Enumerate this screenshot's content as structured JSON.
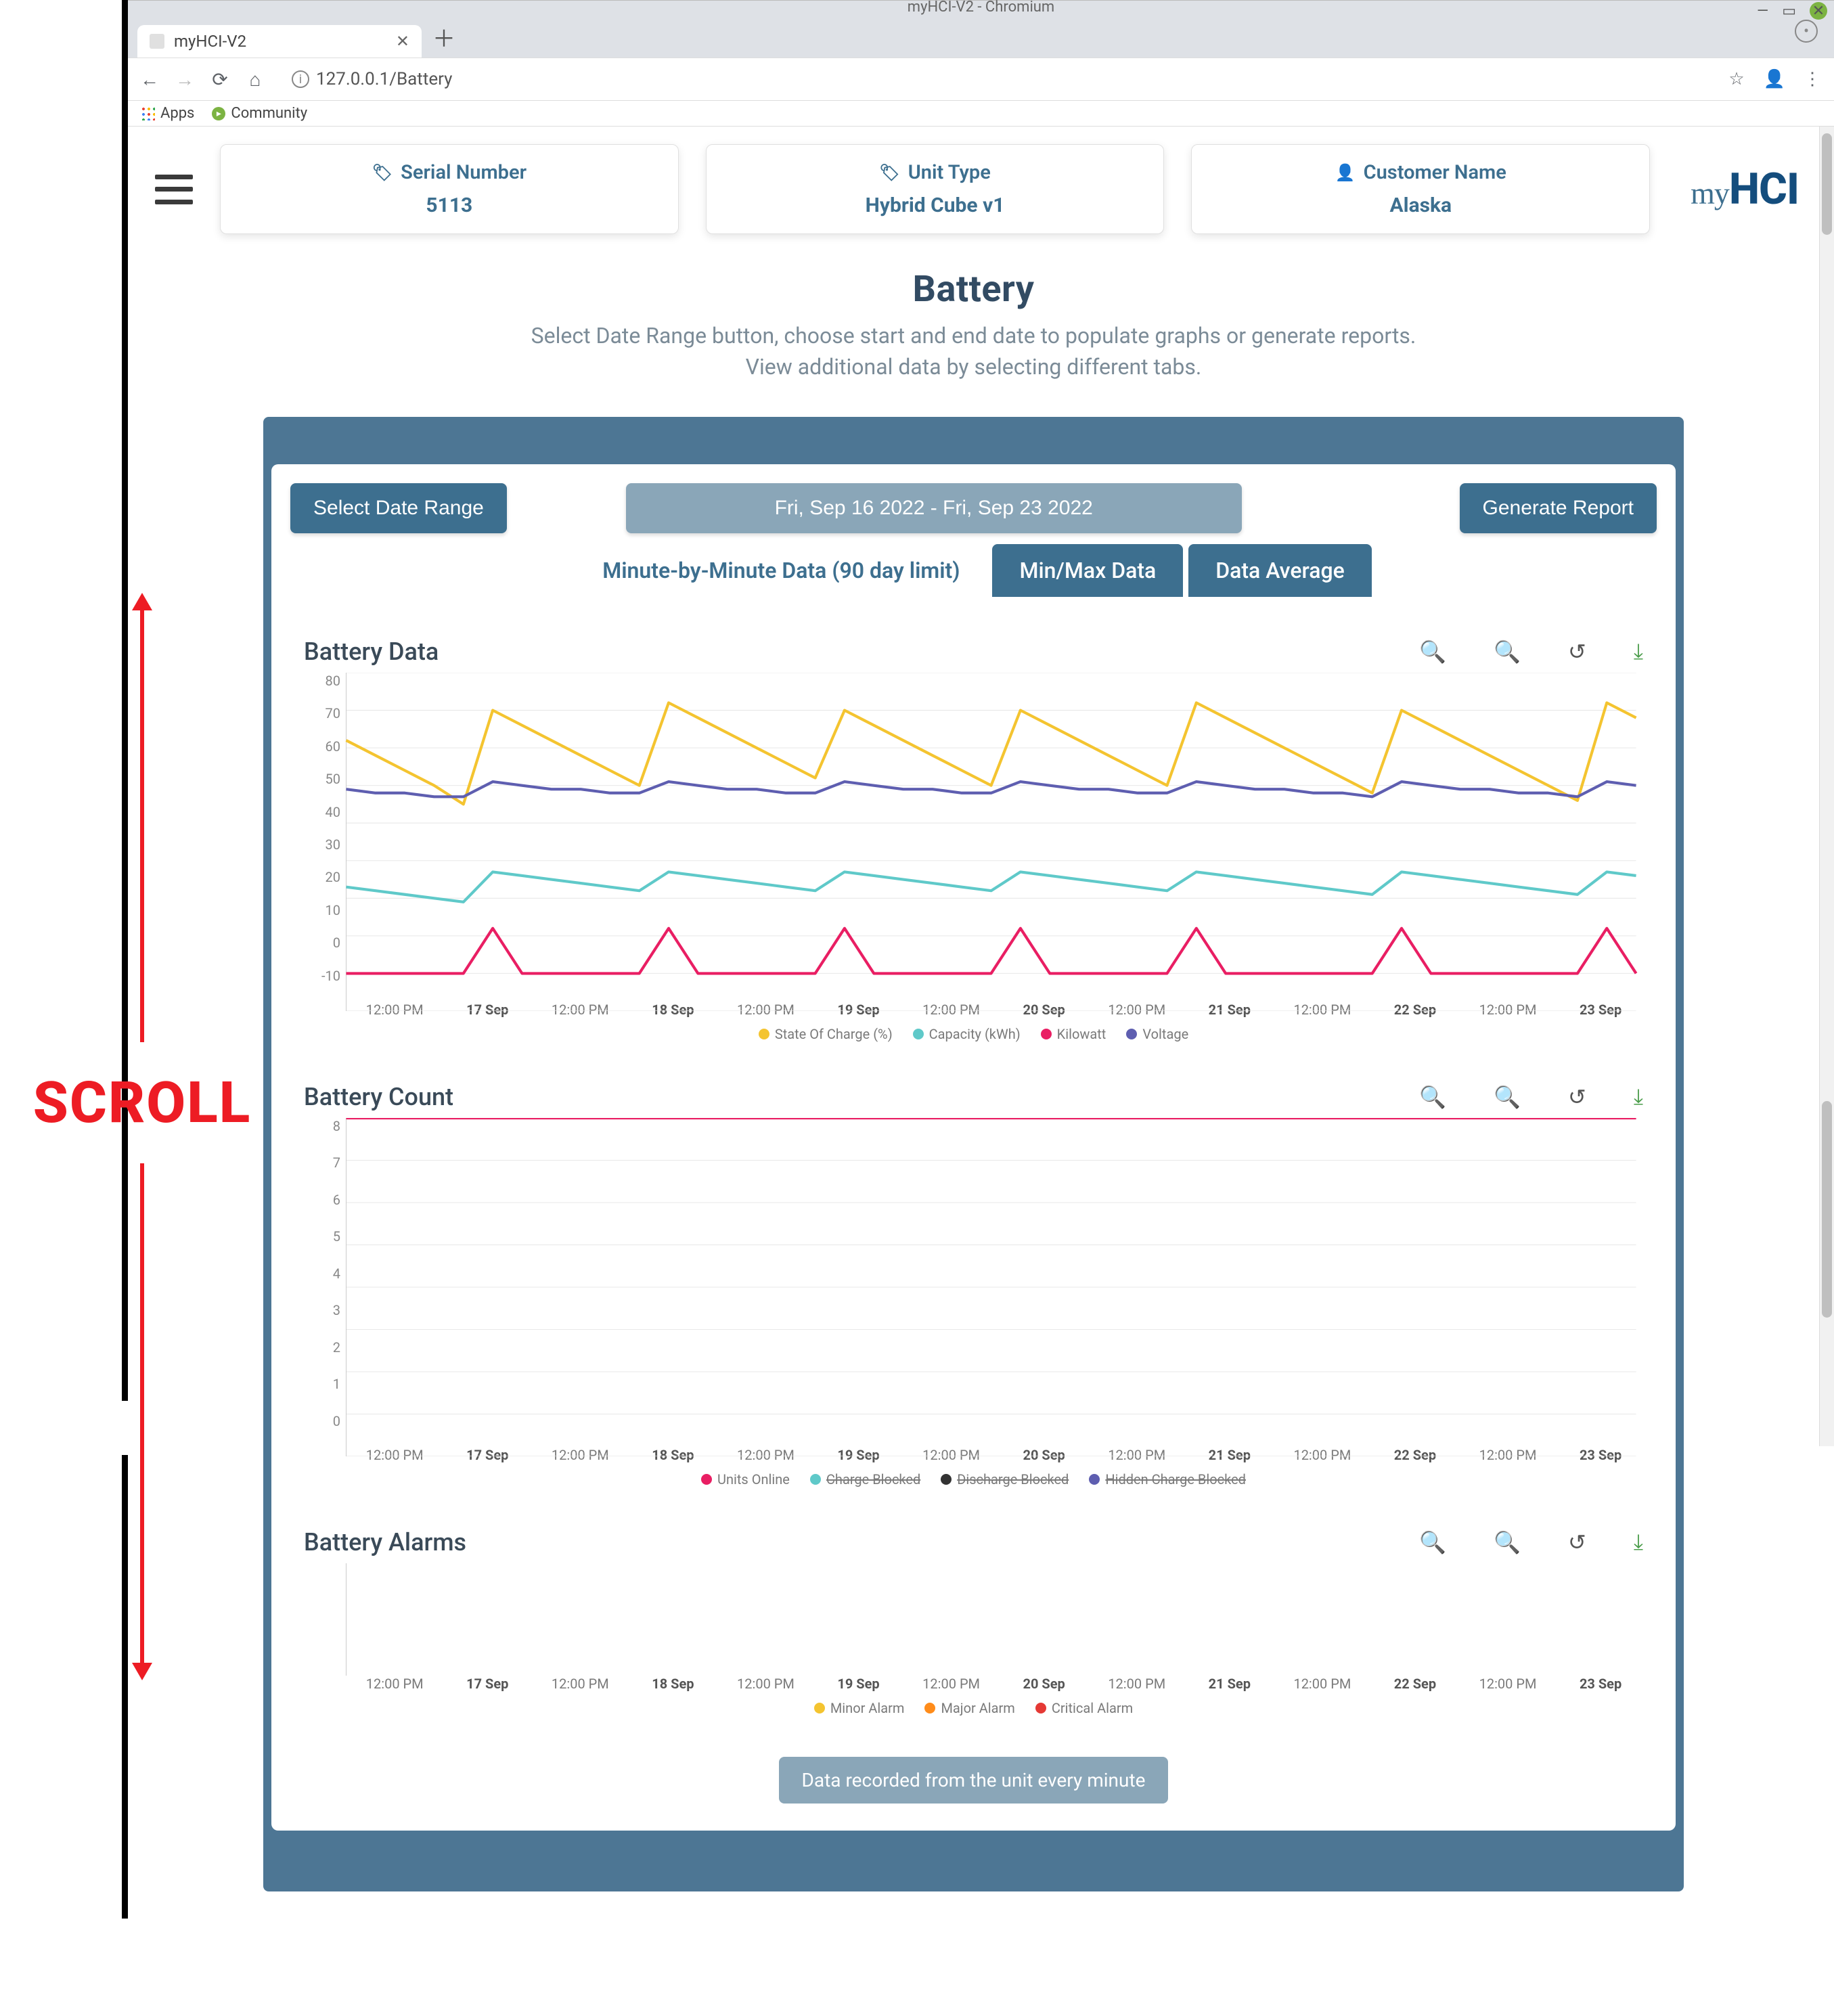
{
  "scroll_label": "SCROLL",
  "browser": {
    "window_title": "myHCI-V2 - Chromium",
    "tab_title": "myHCI-V2",
    "url": "127.0.0.1/Battery",
    "bookmarks": {
      "apps": "Apps",
      "community": "Community"
    }
  },
  "header": {
    "cards": [
      {
        "icon": "🏷",
        "label": "Serial Number",
        "value": "5113"
      },
      {
        "icon": "🏷",
        "label": "Unit Type",
        "value": "Hybrid Cube v1"
      },
      {
        "icon": "👤",
        "label": "Customer Name",
        "value": "Alaska"
      }
    ],
    "logo_my": "my",
    "logo_main": "HCI"
  },
  "title": {
    "main": "Battery",
    "sub1": "Select Date Range button, choose start and end date to populate graphs or generate reports.",
    "sub2": "View additional data by selecting different tabs."
  },
  "controls": {
    "select_range": "Select Date Range",
    "range_display": "Fri, Sep 16 2022 - Fri, Sep 23 2022",
    "generate_report": "Generate Report"
  },
  "tabs": [
    {
      "label": "Minute-by-Minute Data (90 day limit)",
      "active": true
    },
    {
      "label": "Min/Max Data",
      "active": false
    },
    {
      "label": "Data Average",
      "active": false
    }
  ],
  "x_axis": [
    "12:00 PM",
    "17 Sep",
    "12:00 PM",
    "18 Sep",
    "12:00 PM",
    "19 Sep",
    "12:00 PM",
    "20 Sep",
    "12:00 PM",
    "21 Sep",
    "12:00 PM",
    "22 Sep",
    "12:00 PM",
    "23 Sep"
  ],
  "chart1": {
    "title": "Battery Data",
    "type": "line",
    "y_ticks": [
      80,
      70,
      60,
      50,
      40,
      30,
      20,
      10,
      0,
      -10
    ],
    "ylim": [
      -10,
      80
    ],
    "grid_color": "#e8e8e8",
    "background_color": "#ffffff",
    "series": [
      {
        "name": "State Of Charge (%)",
        "color": "#f4c430",
        "values": [
          62,
          58,
          54,
          50,
          45,
          70,
          66,
          62,
          58,
          54,
          50,
          72,
          68,
          64,
          60,
          56,
          52,
          70,
          66,
          62,
          58,
          54,
          50,
          70,
          66,
          62,
          58,
          54,
          50,
          72,
          68,
          64,
          60,
          56,
          52,
          48,
          70,
          66,
          62,
          58,
          54,
          50,
          46,
          72,
          68
        ]
      },
      {
        "name": "Capacity (kWh)",
        "color": "#5fc9c9",
        "values": [
          23,
          22,
          21,
          20,
          19,
          27,
          26,
          25,
          24,
          23,
          22,
          27,
          26,
          25,
          24,
          23,
          22,
          27,
          26,
          25,
          24,
          23,
          22,
          27,
          26,
          25,
          24,
          23,
          22,
          27,
          26,
          25,
          24,
          23,
          22,
          21,
          27,
          26,
          25,
          24,
          23,
          22,
          21,
          27,
          26
        ]
      },
      {
        "name": "Kilowatt",
        "color": "#e91e63",
        "values": [
          0,
          0,
          0,
          0,
          0,
          12,
          0,
          0,
          0,
          0,
          0,
          12,
          0,
          0,
          0,
          0,
          0,
          12,
          0,
          0,
          0,
          0,
          0,
          12,
          0,
          0,
          0,
          0,
          0,
          12,
          0,
          0,
          0,
          0,
          0,
          0,
          12,
          0,
          0,
          0,
          0,
          0,
          0,
          12,
          0
        ]
      },
      {
        "name": "Voltage",
        "color": "#5e5eb0",
        "values": [
          49,
          48,
          48,
          47,
          47,
          51,
          50,
          49,
          49,
          48,
          48,
          51,
          50,
          49,
          49,
          48,
          48,
          51,
          50,
          49,
          49,
          48,
          48,
          51,
          50,
          49,
          49,
          48,
          48,
          51,
          50,
          49,
          49,
          48,
          48,
          47,
          51,
          50,
          49,
          49,
          48,
          48,
          47,
          51,
          50
        ]
      }
    ],
    "legend": [
      {
        "label": "State Of Charge (%)",
        "color": "#f4c430",
        "struck": false
      },
      {
        "label": "Capacity (kWh)",
        "color": "#5fc9c9",
        "struck": false
      },
      {
        "label": "Kilowatt",
        "color": "#e91e63",
        "struck": false
      },
      {
        "label": "Voltage",
        "color": "#5e5eb0",
        "struck": false
      }
    ]
  },
  "chart2": {
    "title": "Battery Count",
    "type": "line",
    "y_ticks": [
      8,
      7,
      6,
      5,
      4,
      3,
      2,
      1,
      0
    ],
    "ylim": [
      0,
      8
    ],
    "grid_color": "#e8e8e8",
    "background_color": "#ffffff",
    "series": [
      {
        "name": "Units Online",
        "color": "#e91e63",
        "values": [
          8,
          8,
          8,
          8,
          8,
          8,
          8,
          8,
          8,
          8,
          8,
          8,
          8,
          8,
          8,
          8,
          8,
          8,
          8,
          8,
          8,
          8,
          8,
          8,
          8,
          8,
          8,
          8,
          8,
          8,
          8,
          8,
          8,
          8,
          8,
          8,
          8,
          8,
          8,
          8,
          8,
          8,
          8,
          8,
          8
        ]
      }
    ],
    "legend": [
      {
        "label": "Units Online",
        "color": "#e91e63",
        "struck": false
      },
      {
        "label": "Charge Blocked",
        "color": "#5fc9c9",
        "struck": true
      },
      {
        "label": "Discharge Blocked",
        "color": "#333333",
        "struck": true
      },
      {
        "label": "Hidden Charge Blocked",
        "color": "#5e5eb0",
        "struck": true
      }
    ]
  },
  "chart3": {
    "title": "Battery Alarms",
    "type": "line",
    "y_ticks": [],
    "ylim": [
      0,
      1
    ],
    "grid_color": "#e8e8e8",
    "background_color": "#ffffff",
    "series": [],
    "legend": [
      {
        "label": "Minor Alarm",
        "color": "#f4c430",
        "struck": false
      },
      {
        "label": "Major Alarm",
        "color": "#ff8c1a",
        "struck": false
      },
      {
        "label": "Critical Alarm",
        "color": "#e53935",
        "struck": false
      }
    ]
  },
  "footer_note": "Data recorded from the unit every minute"
}
